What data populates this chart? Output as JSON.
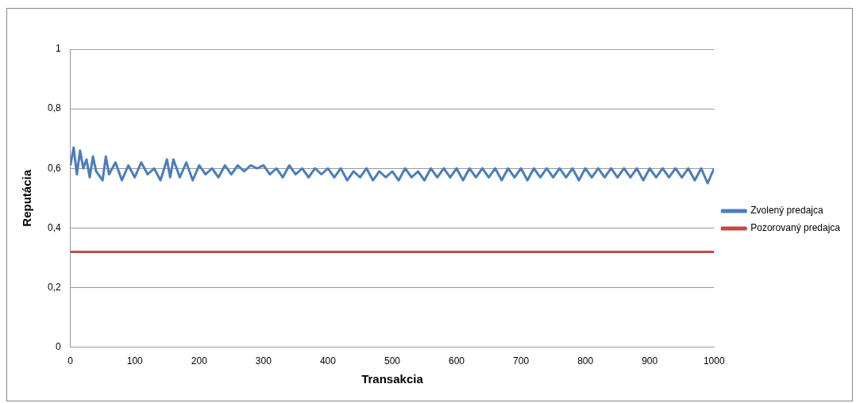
{
  "chart_data": {
    "type": "line",
    "xlabel": "Transakcia",
    "ylabel": "Reputácia",
    "xlim": [
      0,
      1000
    ],
    "xticks": [
      0,
      100,
      200,
      300,
      400,
      500,
      600,
      700,
      800,
      900,
      1000
    ],
    "ylim": [
      0,
      1
    ],
    "yticks": [
      {
        "value": 0,
        "label": "0"
      },
      {
        "value": 0.2,
        "label": "0,2"
      },
      {
        "value": 0.4,
        "label": "0,4"
      },
      {
        "value": 0.6,
        "label": "0,6"
      },
      {
        "value": 0.8,
        "label": "0,8"
      },
      {
        "value": 1,
        "label": "1"
      }
    ],
    "grid": "y",
    "legend": "right",
    "marker": "none",
    "series": [
      {
        "name": "Zvolený predajca",
        "color": "#4a7ebb",
        "x": [
          0,
          5,
          10,
          15,
          20,
          25,
          30,
          35,
          40,
          50,
          55,
          60,
          70,
          80,
          90,
          100,
          110,
          120,
          130,
          140,
          150,
          155,
          160,
          170,
          180,
          190,
          200,
          210,
          220,
          230,
          240,
          250,
          260,
          270,
          280,
          290,
          300,
          310,
          320,
          330,
          340,
          350,
          360,
          370,
          380,
          390,
          400,
          410,
          420,
          430,
          440,
          450,
          460,
          470,
          480,
          490,
          500,
          510,
          520,
          530,
          540,
          550,
          560,
          570,
          580,
          590,
          600,
          610,
          620,
          630,
          640,
          650,
          660,
          670,
          680,
          690,
          700,
          710,
          720,
          730,
          740,
          750,
          760,
          770,
          780,
          790,
          800,
          810,
          820,
          830,
          840,
          850,
          860,
          870,
          880,
          890,
          900,
          910,
          920,
          930,
          940,
          950,
          960,
          970,
          980,
          990,
          1000
        ],
        "values": [
          0.61,
          0.67,
          0.58,
          0.66,
          0.6,
          0.63,
          0.57,
          0.64,
          0.59,
          0.56,
          0.64,
          0.58,
          0.62,
          0.56,
          0.61,
          0.57,
          0.62,
          0.58,
          0.6,
          0.56,
          0.63,
          0.57,
          0.63,
          0.57,
          0.62,
          0.56,
          0.61,
          0.58,
          0.6,
          0.57,
          0.61,
          0.58,
          0.61,
          0.59,
          0.61,
          0.6,
          0.61,
          0.58,
          0.6,
          0.57,
          0.61,
          0.58,
          0.6,
          0.57,
          0.6,
          0.58,
          0.6,
          0.57,
          0.6,
          0.56,
          0.59,
          0.57,
          0.6,
          0.56,
          0.59,
          0.57,
          0.59,
          0.56,
          0.6,
          0.57,
          0.59,
          0.56,
          0.6,
          0.57,
          0.6,
          0.57,
          0.6,
          0.56,
          0.6,
          0.57,
          0.6,
          0.57,
          0.6,
          0.56,
          0.6,
          0.57,
          0.6,
          0.56,
          0.6,
          0.57,
          0.6,
          0.57,
          0.6,
          0.57,
          0.6,
          0.56,
          0.6,
          0.57,
          0.6,
          0.57,
          0.6,
          0.57,
          0.6,
          0.57,
          0.6,
          0.56,
          0.6,
          0.57,
          0.6,
          0.57,
          0.6,
          0.57,
          0.6,
          0.56,
          0.6,
          0.55,
          0.6
        ]
      },
      {
        "name": "Pozorovaný predajca",
        "color": "#be4b48",
        "x": [
          0,
          1000
        ],
        "values": [
          0.32,
          0.32
        ]
      }
    ]
  }
}
